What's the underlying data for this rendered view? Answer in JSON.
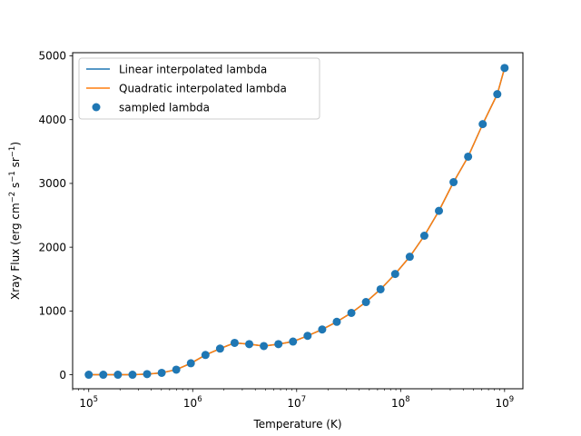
{
  "chart_data": {
    "type": "line",
    "xscale": "log",
    "xlim": [
      70000,
      1500000000
    ],
    "ylim": [
      -220,
      5050
    ],
    "xlabel": "Temperature (K)",
    "ylabel": {
      "main": "Xray Flux (erg cm",
      "sup1": "−2",
      "mid1": " s",
      "sup2": "−1",
      "mid2": " sr",
      "sup3": "−1",
      "end": ")"
    },
    "xticks": [
      {
        "value": 100000,
        "base": "10",
        "exp": "5"
      },
      {
        "value": 1000000,
        "base": "10",
        "exp": "6"
      },
      {
        "value": 10000000,
        "base": "10",
        "exp": "7"
      },
      {
        "value": 100000000,
        "base": "10",
        "exp": "8"
      },
      {
        "value": 1000000000,
        "base": "10",
        "exp": "9"
      }
    ],
    "yticks": [
      {
        "value": 0,
        "label": "0"
      },
      {
        "value": 1000,
        "label": "1000"
      },
      {
        "value": 2000,
        "label": "2000"
      },
      {
        "value": 3000,
        "label": "3000"
      },
      {
        "value": 4000,
        "label": "4000"
      },
      {
        "value": 5000,
        "label": "5000"
      }
    ],
    "x": [
      100000,
      138000,
      190800,
      263600,
      364000,
      503000,
      695000,
      960000,
      1327000,
      1833000,
      2532000,
      3498000,
      4833000,
      6677000,
      9225000,
      12740000,
      17600000,
      24320000,
      33600000,
      46420000,
      64130000,
      88600000,
      122400000,
      169100000,
      233600000,
      322800000,
      445900000,
      616000000,
      851100000,
      1000000000
    ],
    "series": [
      {
        "name": "Linear interpolated lambda",
        "kind": "line",
        "color": "#1f77b4",
        "values": [
          0,
          0,
          0,
          0,
          10,
          30,
          80,
          180,
          310,
          410,
          500,
          480,
          450,
          480,
          520,
          610,
          710,
          830,
          970,
          1140,
          1340,
          1580,
          1850,
          2180,
          2570,
          3020,
          3420,
          3930,
          4400,
          4810
        ]
      },
      {
        "name": "Quadratic interpolated lambda",
        "kind": "line",
        "color": "#ff7f0e",
        "values": [
          0,
          0,
          0,
          0,
          10,
          30,
          80,
          180,
          310,
          410,
          500,
          480,
          450,
          480,
          520,
          610,
          710,
          830,
          970,
          1140,
          1340,
          1580,
          1850,
          2180,
          2570,
          3020,
          3420,
          3930,
          4400,
          4810
        ]
      },
      {
        "name": "sampled lambda",
        "kind": "scatter",
        "color": "#1f77b4",
        "values": [
          0,
          0,
          0,
          0,
          10,
          30,
          80,
          180,
          310,
          410,
          500,
          480,
          450,
          480,
          520,
          610,
          710,
          830,
          970,
          1140,
          1340,
          1580,
          1850,
          2180,
          2570,
          3020,
          3420,
          3930,
          4400,
          4810
        ]
      }
    ],
    "legend": "top-left",
    "grid": false
  }
}
